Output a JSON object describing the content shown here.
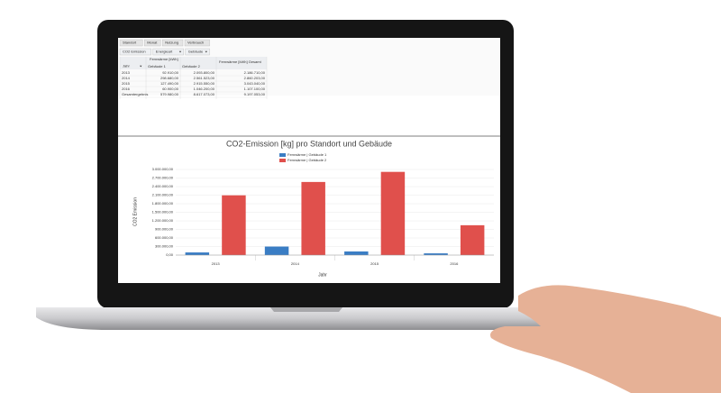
{
  "toolbar": {
    "tabs": [
      "Standort",
      "Monat",
      "Nutzung",
      "Verbrauch"
    ],
    "filters": [
      "CO2 Emission",
      "Energieart",
      "Gebäude"
    ]
  },
  "table": {
    "measure": "Fernwärme [kWh]",
    "total_header": "Fernwärme [kWh] Gesamt",
    "row_field": "Jahr",
    "columns": [
      "Gebäude 1",
      "Gebäude 2"
    ],
    "rows": [
      [
        "2013",
        "92.910,00",
        "2.093.800,00",
        "2.186.710,00"
      ],
      [
        "2014",
        "298.680,00",
        "2.561.523,00",
        "2.860.203,00"
      ],
      [
        "2015",
        "127.490,00",
        "2.915.550,00",
        "3.043.040,00"
      ],
      [
        "2016",
        "60.900,00",
        "1.046.200,00",
        "1.107.100,00"
      ],
      [
        "Gesamtergebnis",
        "579.980,00",
        "8.617.073,00",
        "9.197.053,00"
      ]
    ]
  },
  "chart_data": {
    "type": "bar",
    "title": "CO2-Emission [kg] pro Standort und Gebäude",
    "x_label": "Jahr",
    "y_label": "CO2 Emission",
    "categories": [
      "2013",
      "2014",
      "2015",
      "2016"
    ],
    "series": [
      {
        "name": "Fernwärme | Gebäude 1",
        "color": "#3a7dc4",
        "values": [
          92910,
          298680,
          127490,
          60900
        ]
      },
      {
        "name": "Fernwärme | Gebäude 2",
        "color": "#e0504c",
        "values": [
          2093800,
          2561523,
          2915550,
          1046200
        ]
      }
    ],
    "ylim": [
      0,
      3000000
    ],
    "yticks": [
      {
        "value": 0,
        "label": "0,00"
      },
      {
        "value": 300000,
        "label": "300.000,00"
      },
      {
        "value": 600000,
        "label": "600.000,00"
      },
      {
        "value": 900000,
        "label": "900.000,00"
      },
      {
        "value": 1200000,
        "label": "1.200.000,00"
      },
      {
        "value": 1500000,
        "label": "1.500.000,00"
      },
      {
        "value": 1800000,
        "label": "1.800.000,00"
      },
      {
        "value": 2100000,
        "label": "2.100.000,00"
      },
      {
        "value": 2400000,
        "label": "2.400.000,00"
      },
      {
        "value": 2700000,
        "label": "2.700.000,00"
      },
      {
        "value": 3000000,
        "label": "3.000.000,00"
      }
    ],
    "grid": true,
    "legend": "top"
  }
}
